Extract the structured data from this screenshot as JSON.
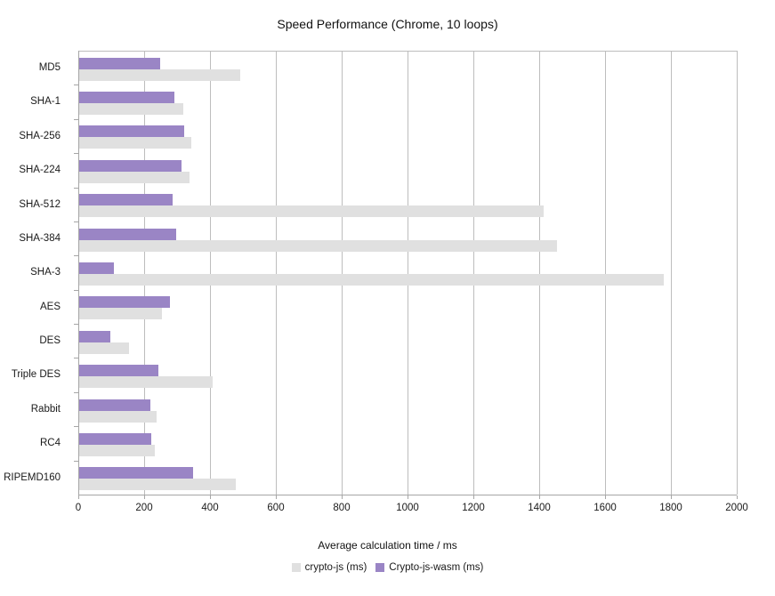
{
  "title": "Speed Performance (Chrome, 10 loops)",
  "x_axis": {
    "label": "Average calculation time / ms",
    "min": 0,
    "max": 2000,
    "step": 200,
    "ticks": [
      "0",
      "200",
      "400",
      "600",
      "800",
      "1000",
      "1200",
      "1400",
      "1600",
      "1800",
      "2000"
    ]
  },
  "legend": [
    {
      "label": "crypto-js (ms)",
      "color": "#e0e0e0"
    },
    {
      "label": "Crypto-js-wasm (ms)",
      "color": "#9a85c5"
    }
  ],
  "chart_data": {
    "type": "bar",
    "orientation": "horizontal",
    "title": "Speed Performance (Chrome, 10 loops)",
    "xlabel": "Average calculation time / ms",
    "xlim": [
      0,
      2000
    ],
    "x_tick_step": 200,
    "grid": true,
    "legend_position": "bottom",
    "categories": [
      "MD5",
      "SHA-1",
      "SHA-256",
      "SHA-224",
      "SHA-512",
      "SHA-384",
      "SHA-3",
      "AES",
      "DES",
      "Triple DES",
      "Rabbit",
      "RC4",
      "RIPEMD160"
    ],
    "series": [
      {
        "name": "crypto-js (ms)",
        "color": "#e0e0e0",
        "values": [
          490,
          315,
          340,
          335,
          1410,
          1450,
          1775,
          250,
          150,
          405,
          235,
          230,
          475
        ]
      },
      {
        "name": "Crypto-js-wasm (ms)",
        "color": "#9a85c5",
        "values": [
          245,
          290,
          320,
          310,
          285,
          295,
          105,
          275,
          95,
          240,
          215,
          220,
          345
        ]
      }
    ],
    "bar_order_within_group": [
      "Crypto-js-wasm (ms)",
      "crypto-js (ms)"
    ]
  }
}
